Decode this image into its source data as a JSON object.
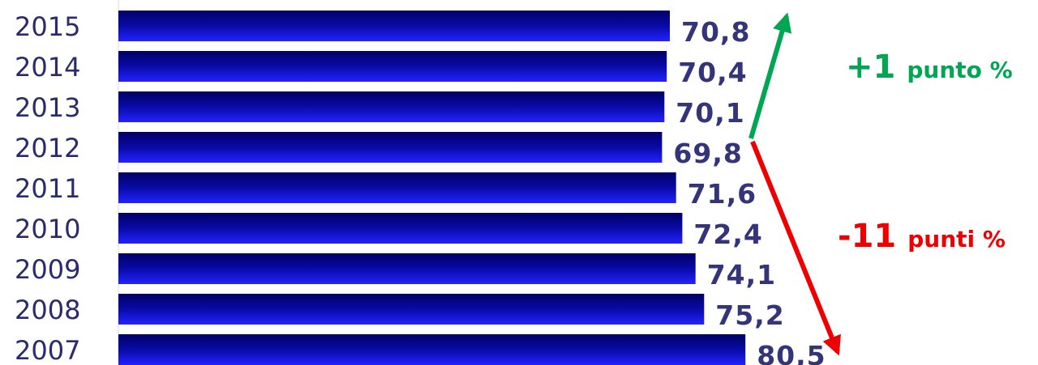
{
  "chart_data": {
    "type": "bar",
    "orientation": "horizontal",
    "categories": [
      "2015",
      "2014",
      "2013",
      "2012",
      "2011",
      "2010",
      "2009",
      "2008",
      "2007"
    ],
    "values": [
      70.8,
      70.4,
      70.1,
      69.8,
      71.6,
      72.4,
      74.1,
      75.2,
      80.5
    ],
    "value_labels": [
      "70,8",
      "70,4",
      "70,1",
      "69,8",
      "71,6",
      "72,4",
      "74,1",
      "75,2",
      "80,5"
    ],
    "xlim": [
      0,
      86
    ],
    "grid": false,
    "legend": "none",
    "colors": {
      "bar_dark": "#000066",
      "bar_light": "#2222ff",
      "text": "#2a2a6e",
      "increase": "#00a651",
      "decrease": "#ee0000"
    },
    "annotations": [
      {
        "id": "increase",
        "value": "+1",
        "text": "punto %",
        "color": "#00a651",
        "from": "2012",
        "to": "2015"
      },
      {
        "id": "decrease",
        "value": "-11",
        "text": "punti %",
        "color": "#ee0000",
        "from": "2012",
        "to": "2007"
      }
    ]
  }
}
